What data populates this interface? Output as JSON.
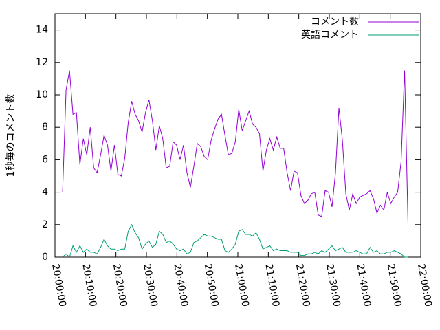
{
  "chart_data": {
    "type": "line",
    "y_label": "1秒毎のコメント数",
    "x": [
      "20:02:30",
      "20:03:38",
      "20:04:46",
      "20:05:54",
      "20:07:02",
      "20:08:10",
      "20:09:18",
      "20:10:26",
      "20:11:34",
      "20:12:42",
      "20:13:50",
      "20:14:58",
      "20:16:06",
      "20:17:14",
      "20:18:22",
      "20:19:30",
      "20:20:38",
      "20:21:46",
      "20:22:54",
      "20:24:02",
      "20:25:10",
      "20:26:18",
      "20:27:26",
      "20:28:34",
      "20:29:42",
      "20:30:50",
      "20:31:58",
      "20:33:06",
      "20:34:14",
      "20:35:22",
      "20:36:30",
      "20:37:38",
      "20:38:46",
      "20:39:54",
      "20:41:02",
      "20:42:10",
      "20:43:18",
      "20:44:26",
      "20:45:34",
      "20:46:42",
      "20:47:50",
      "20:48:58",
      "20:50:06",
      "20:51:14",
      "20:52:22",
      "20:53:30",
      "20:54:38",
      "20:55:46",
      "20:56:54",
      "20:58:02",
      "20:59:10",
      "21:00:18",
      "21:01:26",
      "21:02:34",
      "21:03:42",
      "21:04:50",
      "21:05:58",
      "21:07:06",
      "21:08:14",
      "21:09:22",
      "21:10:30",
      "21:11:38",
      "21:12:46",
      "21:13:54",
      "21:15:02",
      "21:16:10",
      "21:17:18",
      "21:18:26",
      "21:19:34",
      "21:20:42",
      "21:21:50",
      "21:22:58",
      "21:24:06",
      "21:25:14",
      "21:26:22",
      "21:27:30",
      "21:28:38",
      "21:29:46",
      "21:30:54",
      "21:32:02",
      "21:33:10",
      "21:34:18",
      "21:35:26",
      "21:36:34",
      "21:37:42",
      "21:38:50",
      "21:39:58",
      "21:41:06",
      "21:42:14",
      "21:43:22",
      "21:44:30",
      "21:45:38",
      "21:46:46",
      "21:47:54",
      "21:49:02",
      "21:50:10",
      "21:51:18",
      "21:52:26",
      "21:53:34",
      "21:54:42",
      "21:55:50"
    ],
    "series": [
      {
        "name": "コメント数",
        "color": "#9400d3",
        "values": [
          4.0,
          10.3,
          11.5,
          8.8,
          8.9,
          5.7,
          7.3,
          6.3,
          8.0,
          5.5,
          5.2,
          6.3,
          7.5,
          6.9,
          5.3,
          6.9,
          5.1,
          5.0,
          6.1,
          8.3,
          9.6,
          8.8,
          8.4,
          7.7,
          8.9,
          9.7,
          8.4,
          6.6,
          8.1,
          7.3,
          5.5,
          5.6,
          7.1,
          6.9,
          6.0,
          6.9,
          5.2,
          4.3,
          5.6,
          7.0,
          6.8,
          6.2,
          6.0,
          7.2,
          7.9,
          8.5,
          8.8,
          7.5,
          6.3,
          6.4,
          7.1,
          9.1,
          7.8,
          8.4,
          9.0,
          8.2,
          8.0,
          7.6,
          5.3,
          6.6,
          7.3,
          6.6,
          7.4,
          6.7,
          6.7,
          5.2,
          4.1,
          5.3,
          5.2,
          3.8,
          3.3,
          3.5,
          3.9,
          4.0,
          2.6,
          2.5,
          4.1,
          4.0,
          3.1,
          5.2,
          9.2,
          7.2,
          3.9,
          2.9,
          3.9,
          3.3,
          3.7,
          3.8,
          3.9,
          4.1,
          3.6,
          2.7,
          3.2,
          2.9,
          4.0,
          3.3,
          3.7,
          4.0,
          5.9,
          11.5,
          2.0
        ]
      },
      {
        "name": "英語コメント",
        "color": "#009e73",
        "values": [
          0,
          0.2,
          0,
          0.7,
          0.3,
          0.7,
          0.3,
          0.5,
          0.3,
          0.3,
          0.2,
          0.6,
          1.1,
          0.7,
          0.5,
          0.5,
          0.4,
          0.5,
          0.5,
          1.6,
          2.0,
          1.5,
          1.2,
          0.5,
          0.8,
          1.0,
          0.6,
          0.8,
          1.6,
          1.4,
          0.9,
          1.0,
          0.8,
          0.5,
          0.4,
          0.5,
          0.2,
          0.3,
          0.9,
          1.0,
          1.2,
          1.4,
          1.3,
          1.3,
          1.2,
          1.1,
          1.1,
          0.4,
          0.3,
          0.5,
          0.8,
          1.6,
          1.7,
          1.4,
          1.4,
          1.3,
          1.5,
          1.1,
          0.5,
          0.6,
          0.7,
          0.4,
          0.5,
          0.4,
          0.4,
          0.4,
          0.3,
          0.3,
          0.3,
          0.1,
          0.1,
          0.2,
          0.2,
          0.3,
          0.2,
          0.4,
          0.3,
          0.5,
          0.7,
          0.4,
          0.5,
          0.6,
          0.3,
          0.3,
          0.3,
          0.4,
          0.3,
          0.2,
          0.2,
          0.6,
          0.3,
          0.4,
          0.2,
          0.2,
          0.3,
          0.3,
          0.4,
          0.3,
          0.2,
          0.0,
          0.0
        ]
      }
    ],
    "xlim": [
      "20:00:00",
      "22:00:00"
    ],
    "xticks": [
      "20:00:00",
      "20:10:00",
      "20:20:00",
      "20:30:00",
      "20:40:00",
      "20:50:00",
      "21:00:00",
      "21:10:00",
      "21:20:00",
      "21:30:00",
      "21:40:00",
      "21:50:00",
      "22:00:00"
    ],
    "ylim": [
      0,
      15
    ],
    "yticks": [
      0,
      2,
      4,
      6,
      8,
      10,
      12,
      14
    ],
    "legend": "top-right",
    "grid": false
  }
}
